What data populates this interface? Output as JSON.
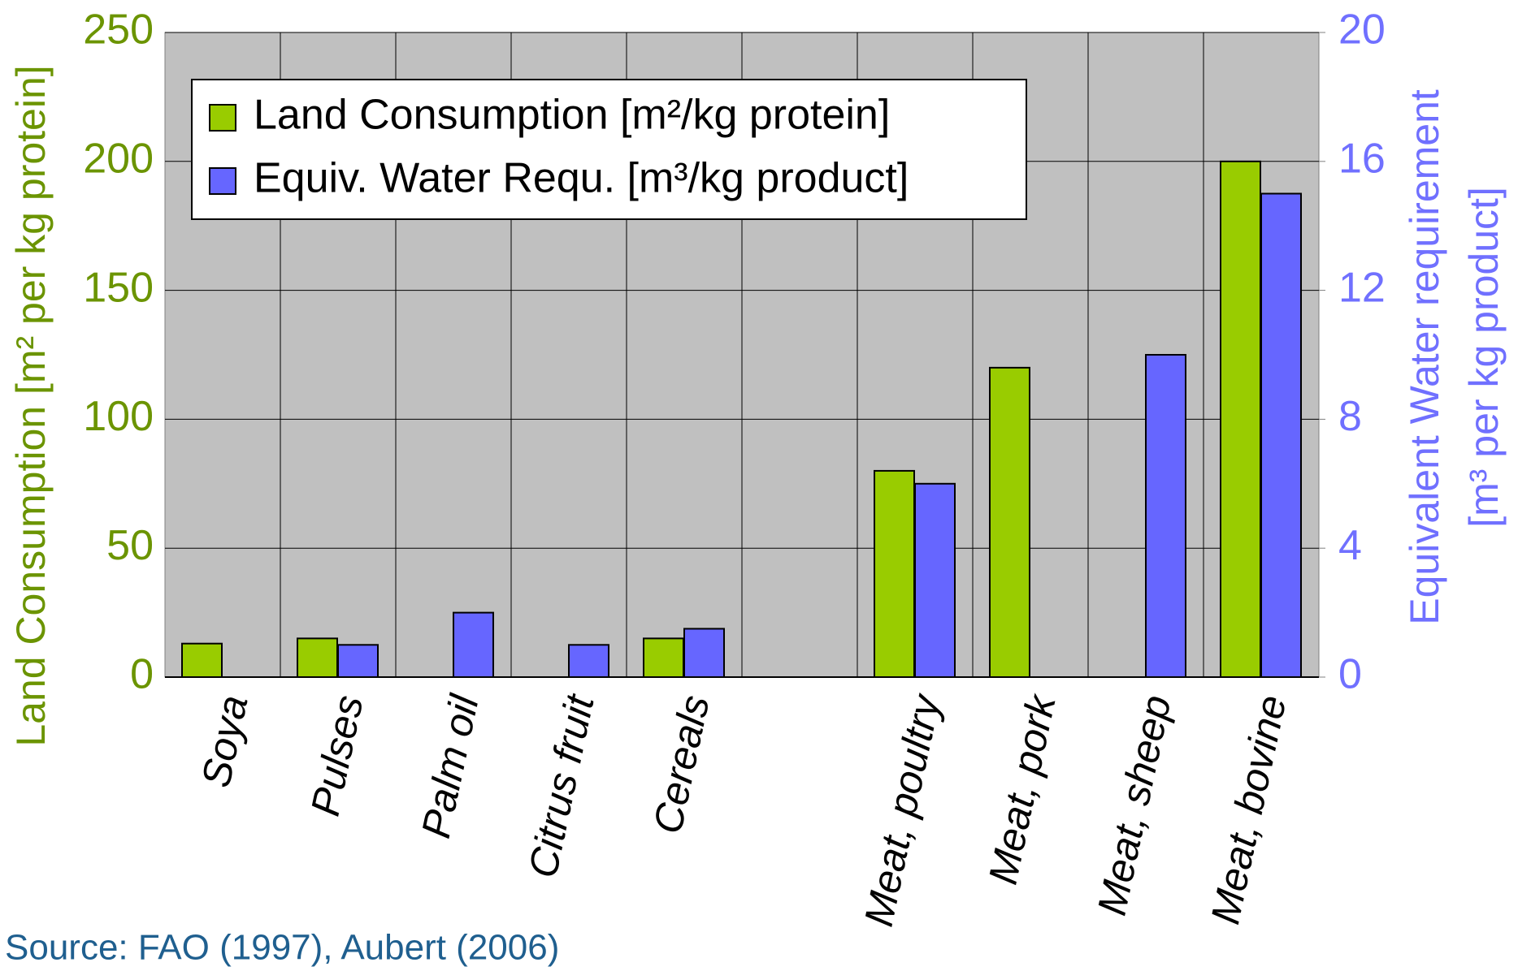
{
  "chart_data": {
    "type": "bar",
    "categories": [
      "Soya",
      "Pulses",
      "Palm oil",
      "Citrus fruit",
      "Cereals",
      null,
      "Meat, poultry",
      "Meat, pork",
      "Meat, sheep",
      "Meat, bovine"
    ],
    "series": [
      {
        "name": "Land Consumption [m²/kg protein]",
        "color": "#99cc00",
        "values": [
          13,
          15,
          null,
          null,
          15,
          null,
          80,
          120,
          null,
          200
        ]
      },
      {
        "name": "Equiv. Water Requ. [m³/kg product]",
        "color": "#6666ff",
        "axis": "y2",
        "values": [
          null,
          1,
          2,
          1,
          1.5,
          null,
          6,
          null,
          10,
          15
        ]
      }
    ],
    "ylabel": "Land Consumption [m² per kg protein]",
    "y2label": [
      "Equivalent Water requirement",
      "[m³ per kg product]"
    ],
    "ylim": [
      0,
      250
    ],
    "yticks": [
      0,
      50,
      100,
      150,
      200,
      250
    ],
    "y2lim": [
      0,
      20
    ],
    "y2ticks": [
      0,
      4,
      8,
      12,
      16,
      20
    ],
    "grid": true,
    "legend": "upper left",
    "source": "Source: FAO (1997),  Aubert (2006)"
  }
}
